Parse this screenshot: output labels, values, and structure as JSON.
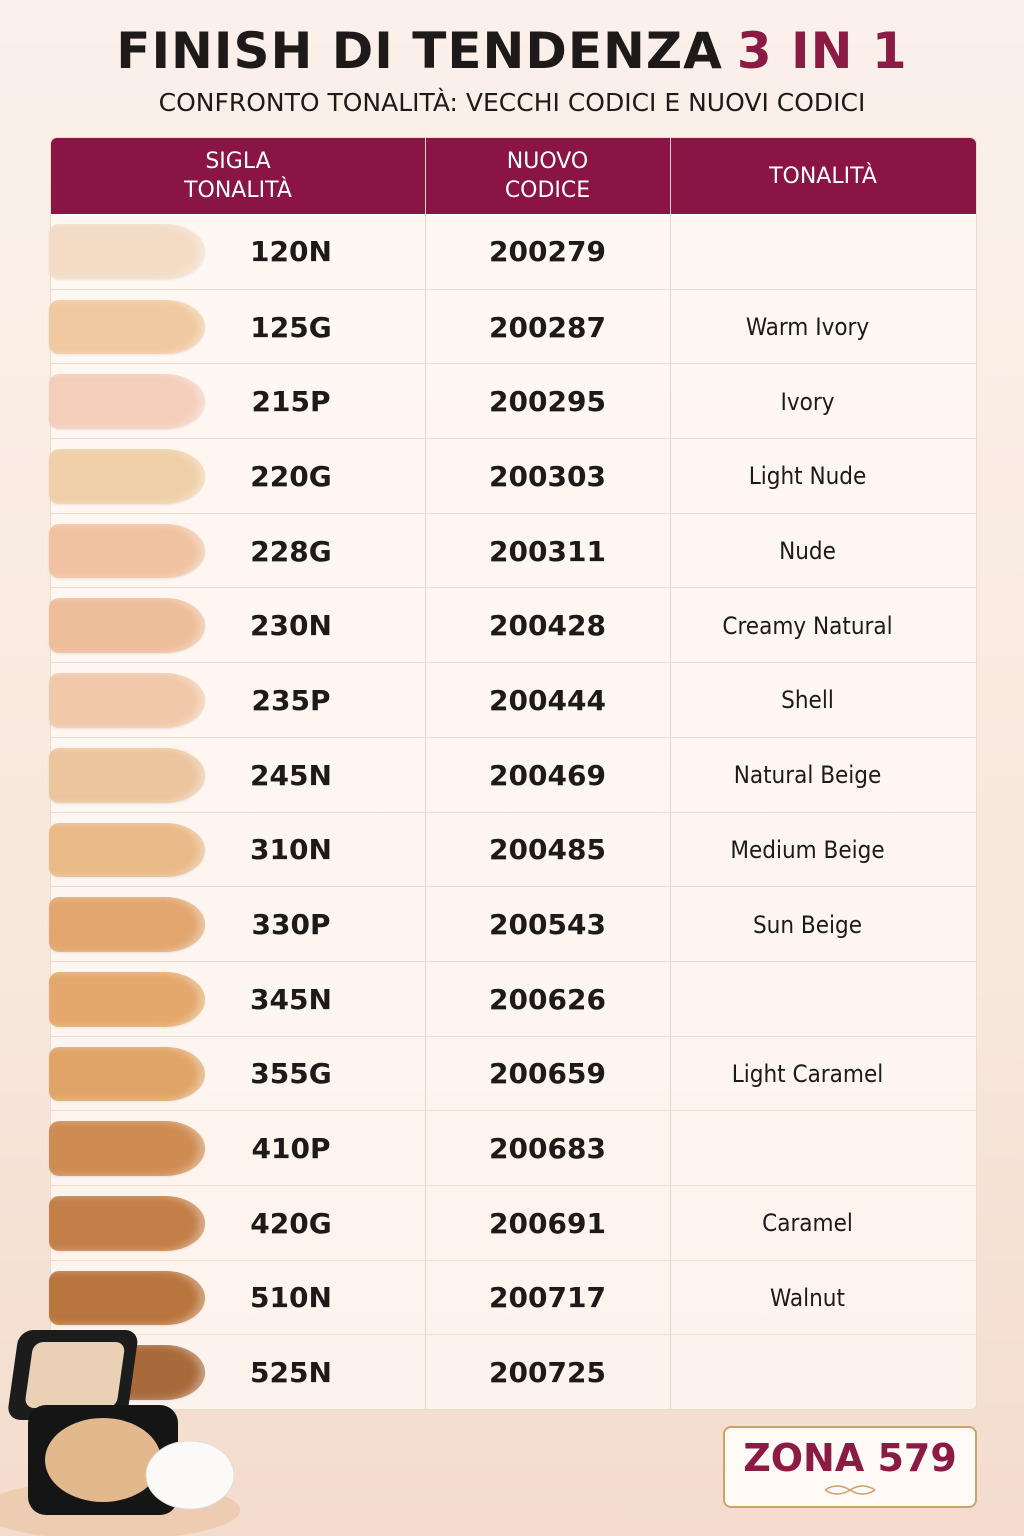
{
  "header": {
    "title": "FINISH DI TENDENZA",
    "title_highlight": "3 IN 1",
    "subtitle": "CONFRONTO TONALITÀ: VECCHI CODICI E NUOVI CODICI"
  },
  "table": {
    "columns": [
      [
        "SIGLA",
        "TONALITÀ"
      ],
      [
        "NUOVO",
        "CODICE"
      ],
      [
        "TONALITÀ"
      ]
    ],
    "rows": [
      {
        "code": "120N",
        "new_code": "200279",
        "name": null,
        "color": "#f3dcc6"
      },
      {
        "code": "125G",
        "new_code": "200287",
        "name": "Warm Ivory",
        "color": "#f0c9a0"
      },
      {
        "code": "215P",
        "new_code": "200295",
        "name": "Ivory",
        "color": "#f5cdbb"
      },
      {
        "code": "220G",
        "new_code": "200303",
        "name": "Light Nude",
        "color": "#efcfa7"
      },
      {
        "code": "228G",
        "new_code": "200311",
        "name": "Nude",
        "color": "#f1c2a1"
      },
      {
        "code": "230N",
        "new_code": "200428",
        "name": "Creamy Natural",
        "color": "#eebd9a"
      },
      {
        "code": "235P",
        "new_code": "200444",
        "name": "Shell",
        "color": "#f1c8a8"
      },
      {
        "code": "245N",
        "new_code": "200469",
        "name": "Natural Beige",
        "color": "#ecc49e"
      },
      {
        "code": "310N",
        "new_code": "200485",
        "name": "Medium Beige",
        "color": "#e9b987"
      },
      {
        "code": "330P",
        "new_code": "200543",
        "name": "Sun Beige",
        "color": "#e2a66e"
      },
      {
        "code": "345N",
        "new_code": "200626",
        "name": null,
        "color": "#e4a86c"
      },
      {
        "code": "355G",
        "new_code": "200659",
        "name": "Light Caramel",
        "color": "#e0a466"
      },
      {
        "code": "410P",
        "new_code": "200683",
        "name": null,
        "color": "#cf8c52"
      },
      {
        "code": "420G",
        "new_code": "200691",
        "name": "Caramel",
        "color": "#c47e48"
      },
      {
        "code": "510N",
        "new_code": "200717",
        "name": "Walnut",
        "color": "#b9753e"
      },
      {
        "code": "525N",
        "new_code": "200725",
        "name": null,
        "color": "#a86a3a"
      }
    ]
  },
  "badge": "ZONA 579"
}
